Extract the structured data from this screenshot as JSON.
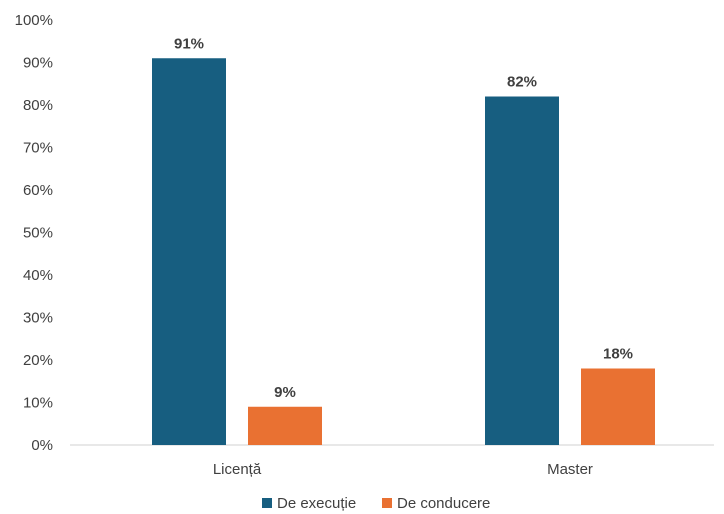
{
  "chart_data": {
    "type": "bar",
    "categories": [
      "Licență",
      "Master"
    ],
    "series": [
      {
        "name": "De execuție",
        "values": [
          91,
          82
        ],
        "labels": [
          "91%",
          "82%"
        ],
        "color": "#175E80"
      },
      {
        "name": "De conducere",
        "values": [
          9,
          18
        ],
        "labels": [
          "9%",
          "18%"
        ],
        "color": "#E97132"
      }
    ],
    "y_ticks": [
      "0%",
      "10%",
      "20%",
      "30%",
      "40%",
      "50%",
      "60%",
      "70%",
      "80%",
      "90%",
      "100%"
    ],
    "ylim": [
      0,
      100
    ],
    "grid": false,
    "legend": "bottom",
    "title": "",
    "xlabel": "",
    "ylabel": ""
  }
}
